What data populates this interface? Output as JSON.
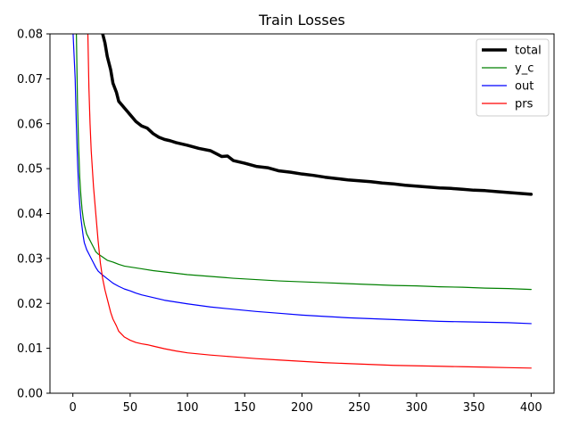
{
  "chart_data": {
    "type": "line",
    "title": "Train Losses",
    "xlabel": "",
    "ylabel": "",
    "xlim": [
      -20,
      420
    ],
    "ylim": [
      0.0,
      0.08
    ],
    "xticks": [
      0,
      50,
      100,
      150,
      200,
      250,
      300,
      350,
      400
    ],
    "yticks": [
      0.0,
      0.01,
      0.02,
      0.03,
      0.04,
      0.05,
      0.06,
      0.07,
      0.08
    ],
    "xtick_labels": [
      "0",
      "50",
      "100",
      "150",
      "200",
      "250",
      "300",
      "350",
      "400"
    ],
    "ytick_labels": [
      "0.00",
      "0.01",
      "0.02",
      "0.03",
      "0.04",
      "0.05",
      "0.06",
      "0.07",
      "0.08"
    ],
    "grid": false,
    "legend_position": "top-right",
    "series": [
      {
        "name": "total",
        "color": "#000000",
        "line_width": "thick",
        "x": [
          25,
          28,
          30,
          33,
          35,
          38,
          40,
          45,
          50,
          55,
          60,
          65,
          70,
          75,
          80,
          85,
          90,
          100,
          110,
          120,
          130,
          135,
          140,
          150,
          160,
          170,
          180,
          190,
          200,
          210,
          220,
          230,
          240,
          250,
          260,
          270,
          280,
          290,
          300,
          310,
          320,
          330,
          340,
          350,
          360,
          370,
          380,
          390,
          400
        ],
        "y": [
          0.081,
          0.078,
          0.075,
          0.072,
          0.069,
          0.067,
          0.065,
          0.0635,
          0.062,
          0.0605,
          0.0595,
          0.059,
          0.0578,
          0.057,
          0.0565,
          0.0562,
          0.0558,
          0.0552,
          0.0545,
          0.054,
          0.0527,
          0.0528,
          0.0518,
          0.0512,
          0.0505,
          0.0502,
          0.0495,
          0.0492,
          0.0488,
          0.0485,
          0.0481,
          0.0478,
          0.0475,
          0.0473,
          0.0471,
          0.0468,
          0.0466,
          0.0463,
          0.0461,
          0.0459,
          0.0457,
          0.0456,
          0.0454,
          0.0452,
          0.0451,
          0.0449,
          0.0447,
          0.0445,
          0.0443
        ]
      },
      {
        "name": "y_c",
        "color": "#008000",
        "line_width": "thin",
        "x": [
          3,
          4,
          5,
          6,
          7,
          8,
          9,
          10,
          12,
          14,
          16,
          18,
          20,
          22,
          25,
          30,
          35,
          40,
          45,
          50,
          55,
          60,
          70,
          80,
          90,
          100,
          120,
          140,
          160,
          180,
          200,
          220,
          240,
          260,
          280,
          300,
          320,
          340,
          360,
          380,
          400
        ],
        "y": [
          0.081,
          0.065,
          0.055,
          0.048,
          0.044,
          0.041,
          0.039,
          0.0375,
          0.0355,
          0.0345,
          0.0335,
          0.0325,
          0.0315,
          0.031,
          0.0305,
          0.0296,
          0.0292,
          0.0287,
          0.0283,
          0.0281,
          0.0279,
          0.0277,
          0.0273,
          0.027,
          0.0267,
          0.0264,
          0.026,
          0.0256,
          0.0253,
          0.025,
          0.0248,
          0.0246,
          0.0244,
          0.0242,
          0.024,
          0.0239,
          0.0237,
          0.0236,
          0.0234,
          0.0233,
          0.0231
        ]
      },
      {
        "name": "out",
        "color": "#0000ff",
        "line_width": "thin",
        "x": [
          0,
          2,
          3,
          4,
          5,
          6,
          7,
          8,
          9,
          10,
          12,
          14,
          16,
          18,
          20,
          22,
          25,
          30,
          35,
          40,
          45,
          50,
          55,
          60,
          70,
          80,
          90,
          100,
          120,
          140,
          160,
          180,
          200,
          220,
          240,
          260,
          280,
          300,
          320,
          340,
          360,
          380,
          400
        ],
        "y": [
          0.081,
          0.07,
          0.06,
          0.052,
          0.046,
          0.042,
          0.039,
          0.037,
          0.035,
          0.0335,
          0.032,
          0.031,
          0.03,
          0.029,
          0.028,
          0.0272,
          0.0265,
          0.0255,
          0.0245,
          0.0238,
          0.0232,
          0.0228,
          0.0223,
          0.0219,
          0.0213,
          0.0207,
          0.0203,
          0.0199,
          0.0192,
          0.0187,
          0.0182,
          0.0178,
          0.0174,
          0.0171,
          0.0168,
          0.0166,
          0.0164,
          0.0162,
          0.016,
          0.0159,
          0.0158,
          0.0157,
          0.0155
        ]
      },
      {
        "name": "prs",
        "color": "#ff0000",
        "line_width": "thin",
        "x": [
          13,
          14,
          15,
          16,
          17,
          18,
          20,
          22,
          24,
          26,
          28,
          30,
          33,
          35,
          38,
          40,
          45,
          50,
          55,
          60,
          65,
          70,
          80,
          90,
          100,
          120,
          140,
          160,
          180,
          200,
          220,
          240,
          260,
          280,
          300,
          320,
          340,
          360,
          380,
          400
        ],
        "y": [
          0.081,
          0.068,
          0.06,
          0.054,
          0.05,
          0.046,
          0.04,
          0.034,
          0.029,
          0.0255,
          0.023,
          0.021,
          0.018,
          0.0165,
          0.015,
          0.0138,
          0.0125,
          0.0118,
          0.0113,
          0.011,
          0.0108,
          0.0105,
          0.0099,
          0.0094,
          0.009,
          0.0085,
          0.0081,
          0.0077,
          0.0074,
          0.0071,
          0.0068,
          0.0066,
          0.0064,
          0.0062,
          0.0061,
          0.006,
          0.0059,
          0.0058,
          0.0057,
          0.0056
        ]
      }
    ]
  }
}
